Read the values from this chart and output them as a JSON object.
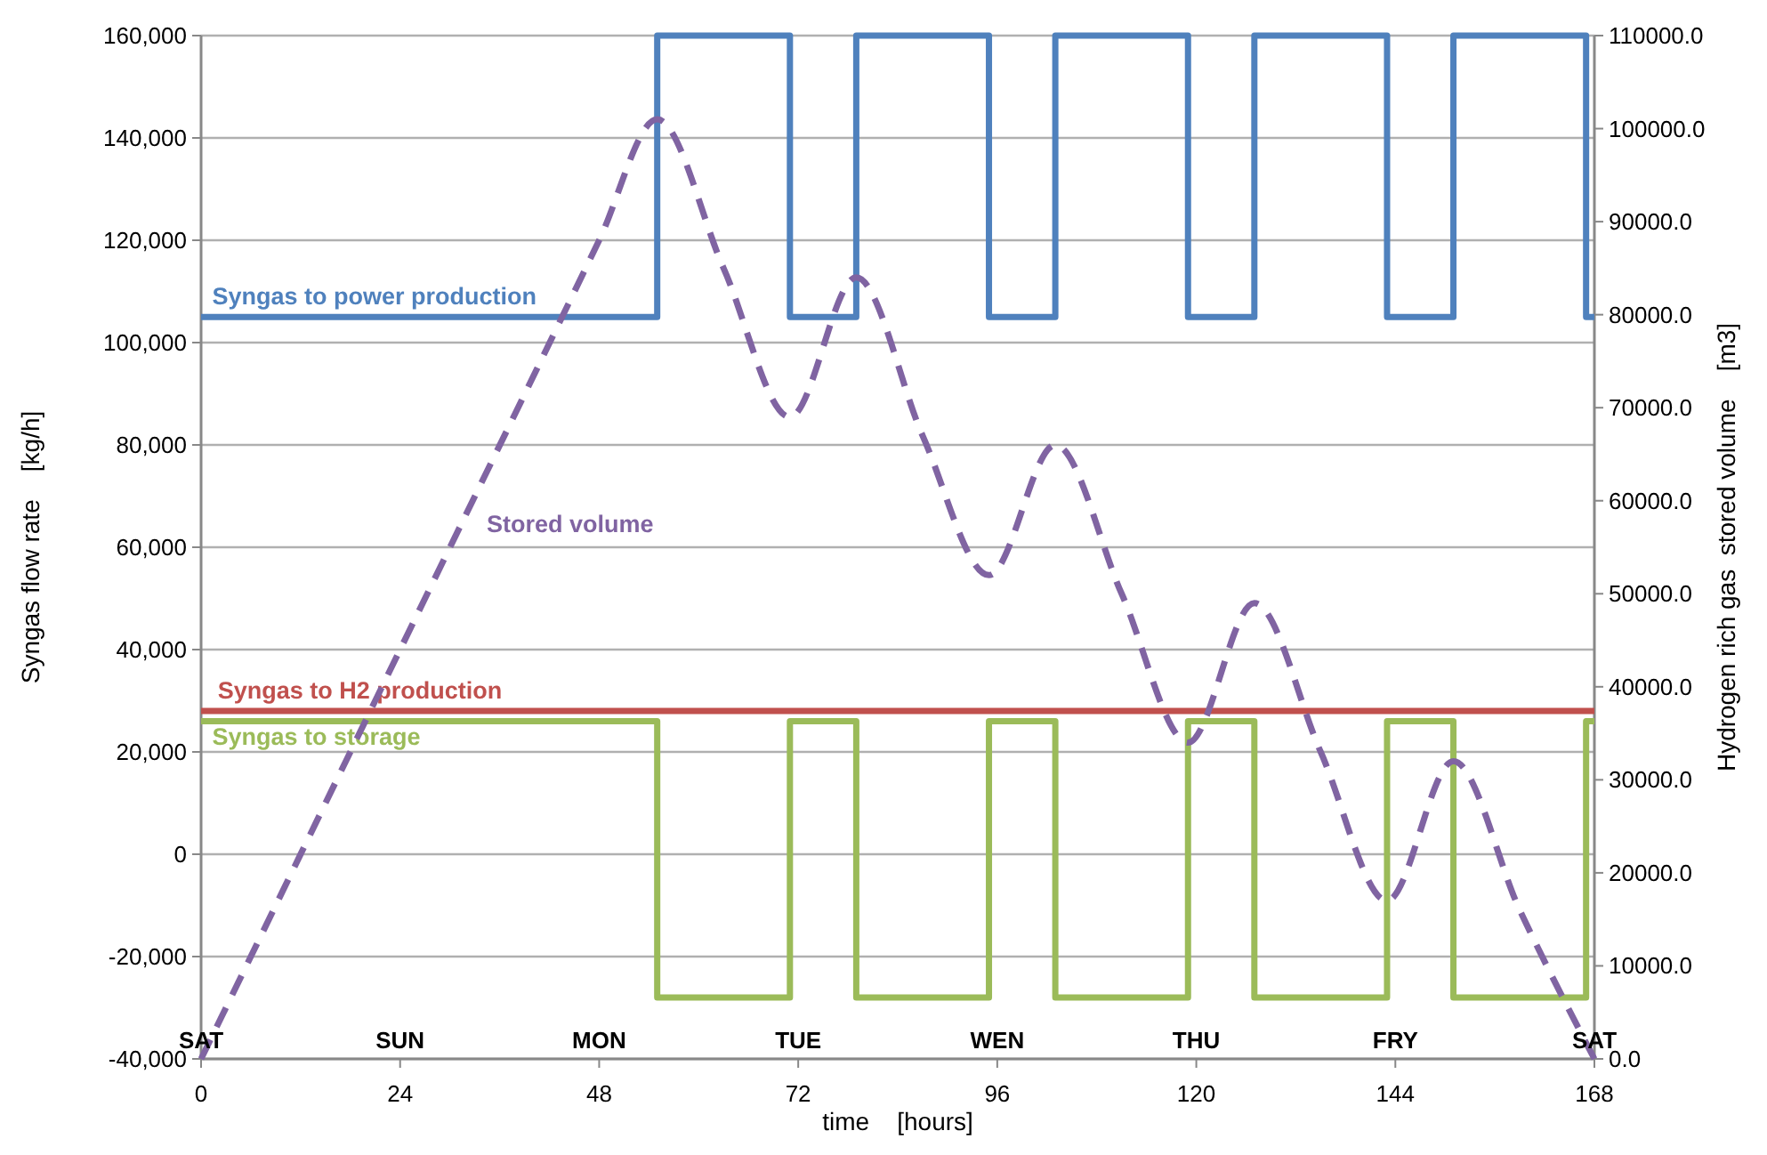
{
  "chart_data": {
    "type": "line",
    "xlabel": "time    [hours]",
    "ylabel": "Syngas flow rate    [kg/h]",
    "y2label": "Hydrogen rich gas  stored volume    [m3]",
    "xlim": [
      0,
      168
    ],
    "xticks": [
      0,
      24,
      48,
      72,
      96,
      120,
      144,
      168
    ],
    "ylim": [
      -40000,
      160000
    ],
    "yticks": [
      {
        "value": -40000,
        "label": "-40,000"
      },
      {
        "value": -20000,
        "label": "-20,000"
      },
      {
        "value": 0,
        "label": "0"
      },
      {
        "value": 20000,
        "label": "20,000"
      },
      {
        "value": 40000,
        "label": "40,000"
      },
      {
        "value": 60000,
        "label": "60,000"
      },
      {
        "value": 80000,
        "label": "80,000"
      },
      {
        "value": 100000,
        "label": "100,000"
      },
      {
        "value": 120000,
        "label": "120,000"
      },
      {
        "value": 140000,
        "label": "140,000"
      },
      {
        "value": 160000,
        "label": "160,000"
      }
    ],
    "y2lim": [
      0,
      110000
    ],
    "y2ticks": [
      {
        "value": 0,
        "label": "0.0"
      },
      {
        "value": 10000,
        "label": "10000.0"
      },
      {
        "value": 20000,
        "label": "20000.0"
      },
      {
        "value": 30000,
        "label": "30000.0"
      },
      {
        "value": 40000,
        "label": "40000.0"
      },
      {
        "value": 50000,
        "label": "50000.0"
      },
      {
        "value": 60000,
        "label": "60000.0"
      },
      {
        "value": 70000,
        "label": "70000.0"
      },
      {
        "value": 80000,
        "label": "80000.0"
      },
      {
        "value": 90000,
        "label": "90000.0"
      },
      {
        "value": 100000,
        "label": "100000.0"
      },
      {
        "value": 110000,
        "label": "110000.0"
      }
    ],
    "grid": "y",
    "legend": false,
    "marker": "none",
    "series": [
      {
        "name": "Syngas to power production",
        "type": "step",
        "color": "#4f81bd",
        "x": [
          0,
          55,
          71,
          79,
          95,
          103,
          119,
          127,
          143,
          151,
          167,
          168
        ],
        "values": [
          105000,
          160000,
          105000,
          160000,
          105000,
          160000,
          105000,
          160000,
          105000,
          160000,
          105000,
          105000
        ]
      },
      {
        "name": "Syngas to H2 production",
        "color": "#c0504d",
        "x": [
          0,
          168
        ],
        "values": [
          28000,
          28000
        ]
      },
      {
        "name": "Syngas to storage",
        "type": "step",
        "color": "#9bbb59",
        "x": [
          0,
          55,
          71,
          79,
          95,
          103,
          119,
          127,
          143,
          151,
          167,
          168
        ],
        "values": [
          26000,
          -28000,
          26000,
          -28000,
          26000,
          -28000,
          26000,
          -28000,
          26000,
          -28000,
          26000,
          26000
        ]
      },
      {
        "name": "Stored volume",
        "axis": "y2",
        "line_style": "dashed",
        "color": "#8064a2",
        "x": [
          0,
          24,
          48,
          55,
          63,
          71,
          79,
          87,
          95,
          103,
          111,
          119,
          127,
          135,
          143,
          151,
          159,
          168
        ],
        "values": [
          0,
          44000,
          88000,
          101000,
          85000,
          69000,
          84000,
          67000,
          52000,
          66000,
          50000,
          34000,
          49000,
          33000,
          17000,
          32000,
          16000,
          0
        ]
      }
    ],
    "annotations": [
      "SAT",
      "SUN",
      "MON",
      "TUE",
      "WEN",
      "THU",
      "FRY",
      "SAT"
    ]
  }
}
